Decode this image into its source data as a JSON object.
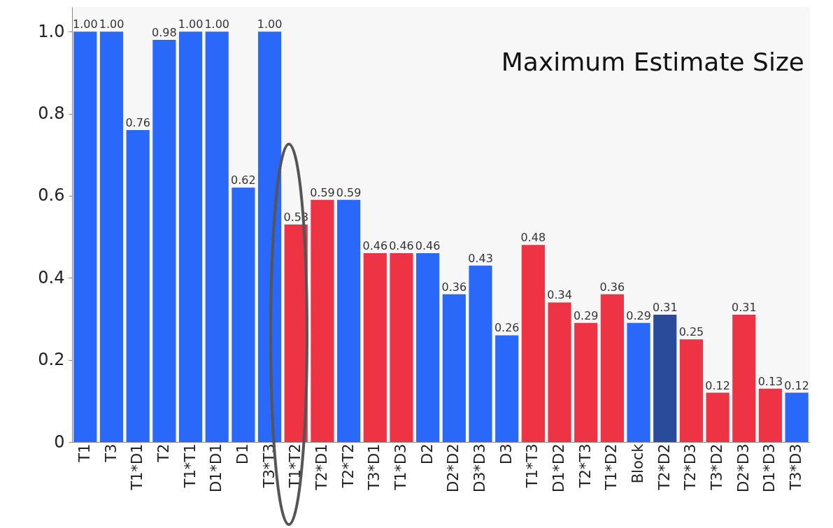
{
  "chart_data": {
    "type": "bar",
    "title": "Maximum Estimate Size",
    "categories": [
      "T1",
      "T3",
      "T1*D1",
      "T2",
      "T1*T1",
      "D1*D1",
      "D1",
      "T3*T3",
      "T1*T2",
      "T2*D1",
      "T2*T2",
      "T3*D1",
      "T1*D3",
      "D2",
      "D2*D2",
      "D3*D3",
      "D3",
      "T1*T3",
      "D1*D2",
      "T2*T3",
      "T1*D2",
      "Block",
      "T2*D2",
      "T2*D3",
      "T3*D2",
      "D2*D3",
      "D1*D3",
      "T3*D3"
    ],
    "values": [
      1,
      1,
      0.76,
      0.98,
      1,
      1,
      0.62,
      1,
      0.53,
      0.59,
      0.59,
      0.46,
      0.46,
      0.46,
      0.36,
      0.43,
      0.26,
      0.48,
      0.34,
      0.29,
      0.36,
      0.29,
      0.31,
      0.25,
      0.12,
      0.31,
      0.13,
      0.12
    ],
    "value_labels": [
      "1.00",
      "1.00",
      "0.76",
      "0.98",
      "1.00",
      "1.00",
      "0.62",
      "1.00",
      "0.53",
      "0.59",
      "0.59",
      "0.46",
      "0.46",
      "0.46",
      "0.36",
      "0.43",
      "0.26",
      "0.48",
      "0.34",
      "0.29",
      "0.36",
      "0.29",
      "0.31",
      "0.25",
      "0.12",
      "0.31",
      "0.13",
      "0.12"
    ],
    "colors": [
      "#2968f8",
      "#2968f8",
      "#2968f8",
      "#2968f8",
      "#2968f8",
      "#2968f8",
      "#2968f8",
      "#2968f8",
      "#ee3344",
      "#ee3344",
      "#2968f8",
      "#ee3344",
      "#ee3344",
      "#2968f8",
      "#2968f8",
      "#2968f8",
      "#2968f8",
      "#ee3344",
      "#ee3344",
      "#ee3344",
      "#ee3344",
      "#2968f8",
      "#2a4a9a",
      "#ee3344",
      "#ee3344",
      "#ee3344",
      "#ee3344",
      "#2968f8"
    ],
    "ylim": [
      0,
      1.06
    ],
    "yticks": [
      0,
      0.2,
      0.4,
      0.6,
      0.8,
      {
        "value": 1,
        "label": "1.0"
      }
    ],
    "grid": false
  }
}
